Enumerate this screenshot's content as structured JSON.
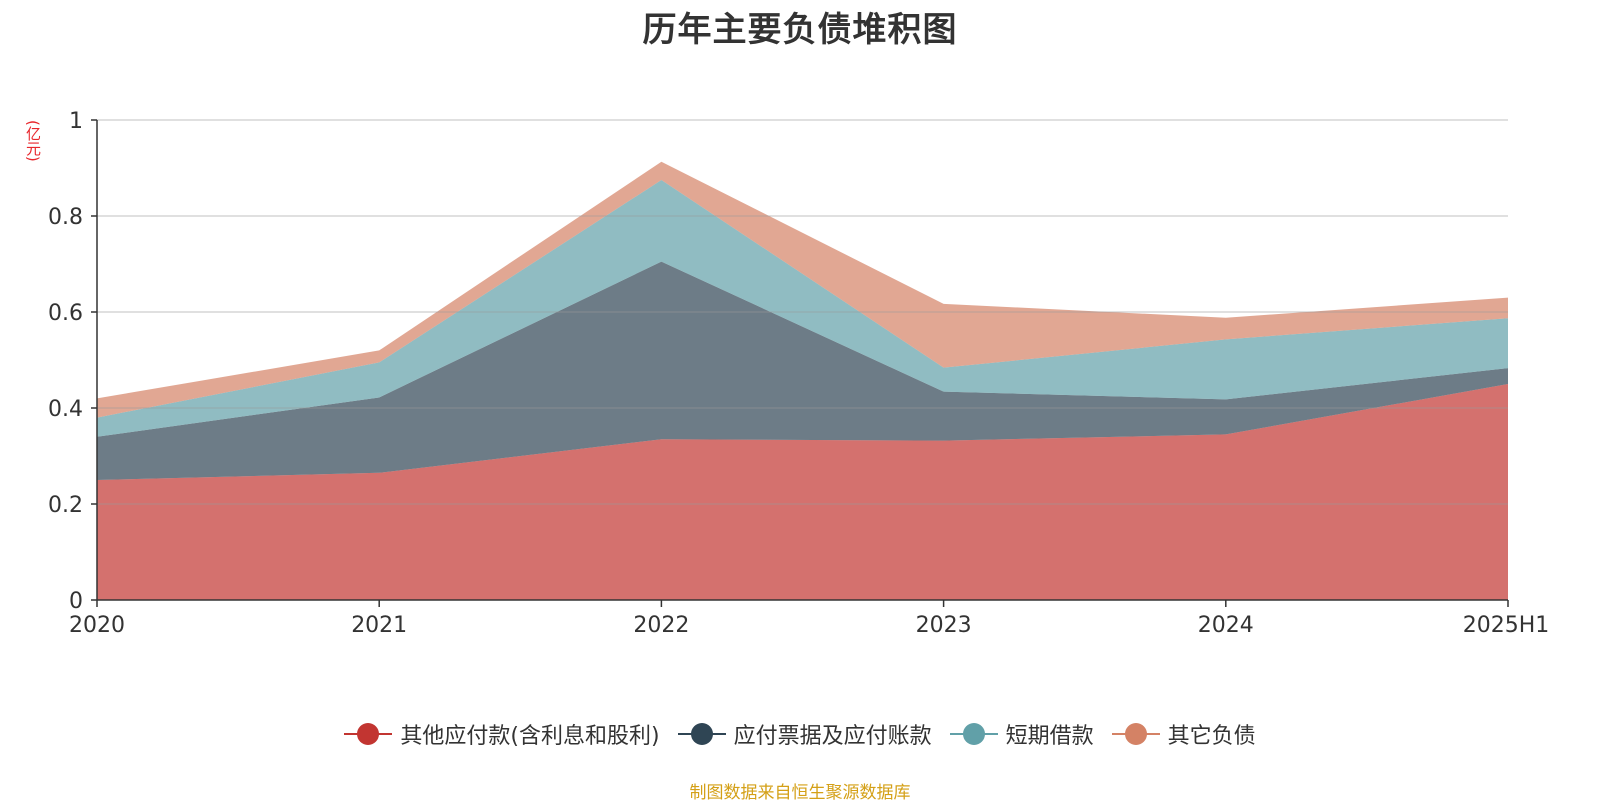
{
  "chart_data": {
    "type": "area",
    "stacked": true,
    "title": "历年主要负债堆积图",
    "unit_label": "(亿元)",
    "categories": [
      "2020",
      "2021",
      "2022",
      "2023",
      "2024",
      "2025H1"
    ],
    "ylim": [
      0,
      1
    ],
    "yticks": [
      "0",
      "0.2",
      "0.4",
      "0.6",
      "0.8",
      "1"
    ],
    "grid": true,
    "legend_position": "bottom",
    "series": [
      {
        "name": "其他应付款(含利息和股利)",
        "color": "#c23531",
        "values": [
          0.25,
          0.265,
          0.335,
          0.332,
          0.345,
          0.45
        ]
      },
      {
        "name": "应付票据及应付账款",
        "color": "#2f4554",
        "values": [
          0.09,
          0.157,
          0.37,
          0.102,
          0.073,
          0.033
        ]
      },
      {
        "name": "短期借款",
        "color": "#61a0a8",
        "values": [
          0.04,
          0.073,
          0.17,
          0.05,
          0.125,
          0.104
        ]
      },
      {
        "name": "其它负债",
        "color": "#d48265",
        "values": [
          0.04,
          0.025,
          0.038,
          0.133,
          0.045,
          0.043
        ]
      }
    ],
    "source": "制图数据来自恒生聚源数据库"
  }
}
